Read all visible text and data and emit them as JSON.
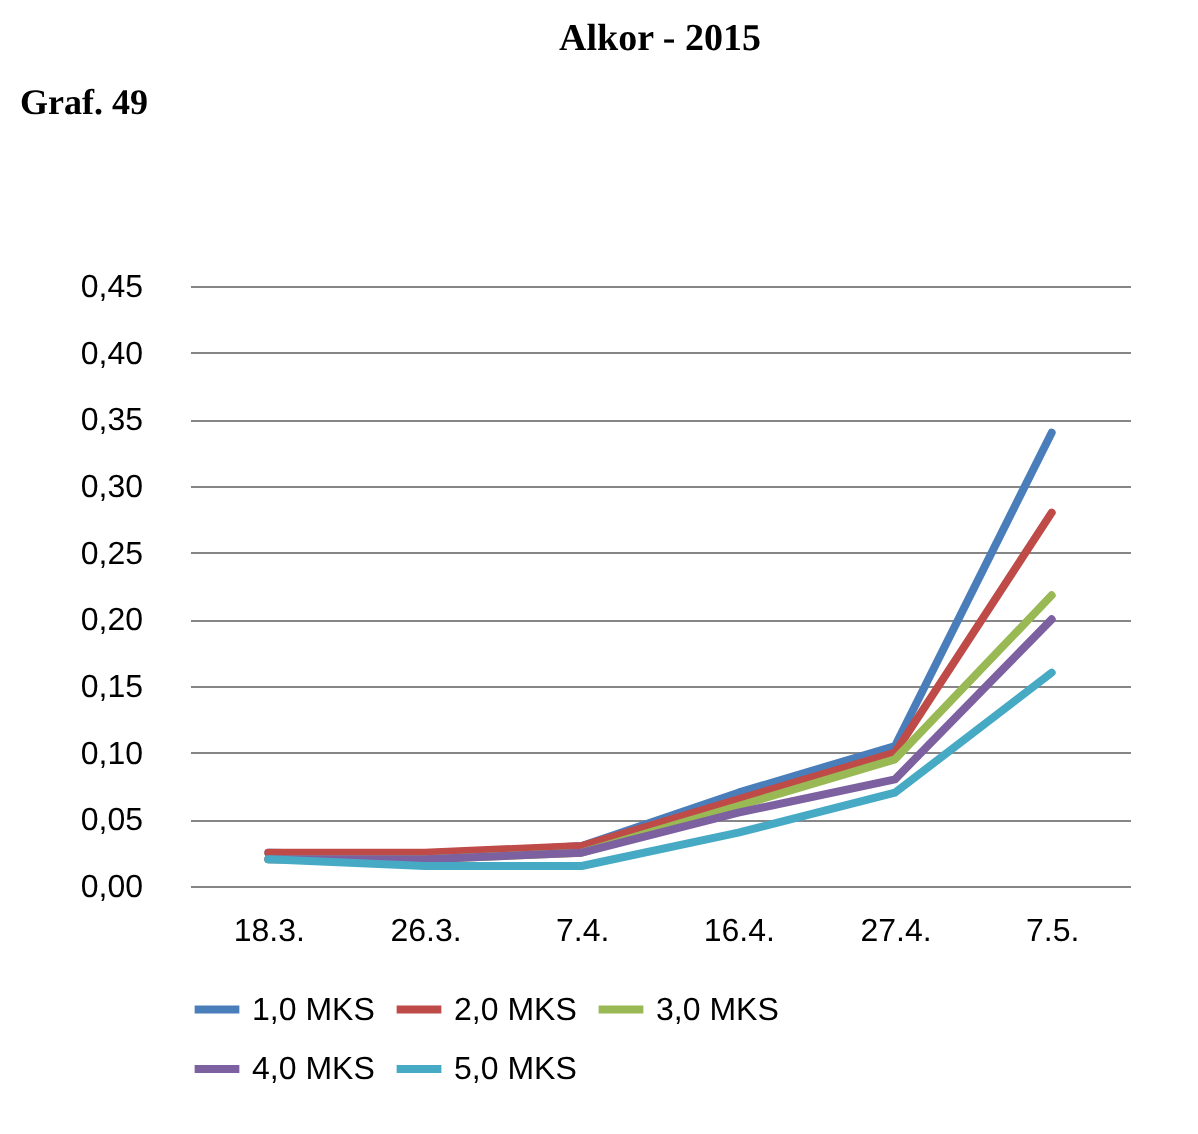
{
  "chart_data": {
    "type": "line",
    "title": "Alkor - 2015",
    "annotations": [
      "Graf. 49"
    ],
    "categories": [
      "18.3.",
      "26.3.",
      "7.4.",
      "16.4.",
      "27.4.",
      "7.5."
    ],
    "series": [
      {
        "name": "1,0 MKS",
        "color": "#4a7ebb",
        "values": [
          0.025,
          0.023,
          0.03,
          0.07,
          0.105,
          0.34
        ]
      },
      {
        "name": "2,0 MKS",
        "color": "#be4b48",
        "values": [
          0.025,
          0.025,
          0.03,
          0.065,
          0.1,
          0.28
        ]
      },
      {
        "name": "3,0 MKS",
        "color": "#98b954",
        "values": [
          0.02,
          0.02,
          0.025,
          0.06,
          0.095,
          0.218
        ]
      },
      {
        "name": "4,0 MKS",
        "color": "#7d60a0",
        "values": [
          0.02,
          0.02,
          0.025,
          0.055,
          0.08,
          0.2
        ]
      },
      {
        "name": "5,0 MKS",
        "color": "#46aac5",
        "values": [
          0.02,
          0.015,
          0.015,
          0.04,
          0.07,
          0.16
        ]
      }
    ],
    "ylim": [
      0,
      0.45
    ],
    "yticks": [
      {
        "value": 0,
        "label": "0,00"
      },
      {
        "value": 0.05,
        "label": "0,05"
      },
      {
        "value": 0.1,
        "label": "0,10"
      },
      {
        "value": 0.15,
        "label": "0,15"
      },
      {
        "value": 0.2,
        "label": "0,20"
      },
      {
        "value": 0.25,
        "label": "0,25"
      },
      {
        "value": 0.3,
        "label": "0,30"
      },
      {
        "value": 0.35,
        "label": "0,35"
      },
      {
        "value": 0.4,
        "label": "0,40"
      },
      {
        "value": 0.45,
        "label": "0,45"
      }
    ],
    "grid": "y",
    "legend": "bottom",
    "marker": "none",
    "line_style": "solid"
  }
}
